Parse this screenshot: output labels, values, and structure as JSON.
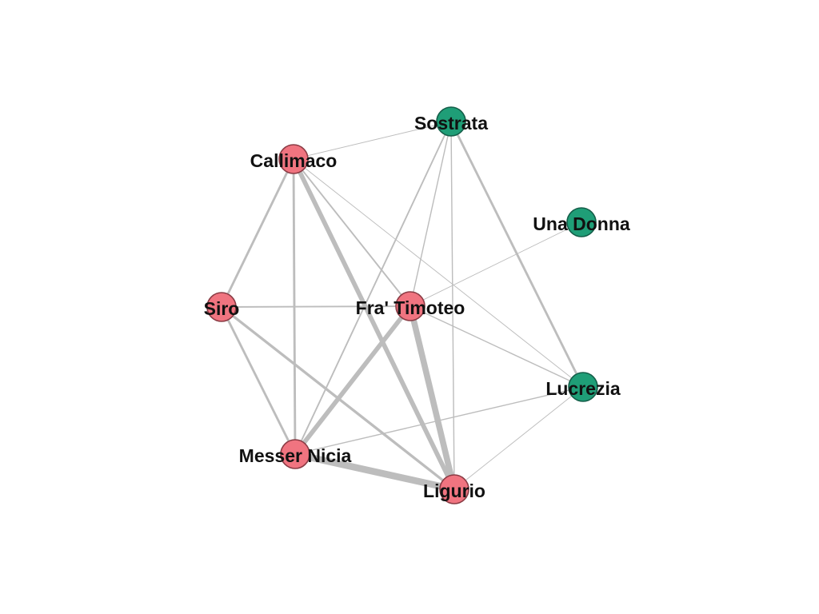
{
  "graph": {
    "colors": {
      "group_a": "#f07480",
      "group_a_stroke": "#8a3b44",
      "group_b": "#1f9e77",
      "group_b_stroke": "#145e49",
      "edge": "#bdbdbd"
    },
    "nodes": [
      {
        "id": "sostrata",
        "label": "Sostrata",
        "group": "b"
      },
      {
        "id": "callimaco",
        "label": "Callimaco",
        "group": "a"
      },
      {
        "id": "una-donna",
        "label": "Una Donna",
        "group": "b"
      },
      {
        "id": "siro",
        "label": "Siro",
        "group": "a"
      },
      {
        "id": "fra-timoteo",
        "label": "Fra' Timoteo",
        "group": "a"
      },
      {
        "id": "lucrezia",
        "label": "Lucrezia",
        "group": "b"
      },
      {
        "id": "messer-nicia",
        "label": "Messer Nicia",
        "group": "a"
      },
      {
        "id": "ligurio",
        "label": "Ligurio",
        "group": "a"
      }
    ],
    "edges": [
      {
        "source": "callimaco",
        "target": "sostrata",
        "weight": 1
      },
      {
        "source": "callimaco",
        "target": "siro",
        "weight": 3
      },
      {
        "source": "callimaco",
        "target": "messer-nicia",
        "weight": 3
      },
      {
        "source": "callimaco",
        "target": "fra-timoteo",
        "weight": 2
      },
      {
        "source": "callimaco",
        "target": "ligurio",
        "weight": 6
      },
      {
        "source": "callimaco",
        "target": "lucrezia",
        "weight": 1
      },
      {
        "source": "sostrata",
        "target": "messer-nicia",
        "weight": 2
      },
      {
        "source": "sostrata",
        "target": "fra-timoteo",
        "weight": 1.5
      },
      {
        "source": "sostrata",
        "target": "ligurio",
        "weight": 1.5
      },
      {
        "source": "sostrata",
        "target": "lucrezia",
        "weight": 3
      },
      {
        "source": "siro",
        "target": "fra-timoteo",
        "weight": 2
      },
      {
        "source": "siro",
        "target": "messer-nicia",
        "weight": 3
      },
      {
        "source": "siro",
        "target": "ligurio",
        "weight": 3.5
      },
      {
        "source": "fra-timoteo",
        "target": "una-donna",
        "weight": 1
      },
      {
        "source": "fra-timoteo",
        "target": "messer-nicia",
        "weight": 6
      },
      {
        "source": "fra-timoteo",
        "target": "ligurio",
        "weight": 8
      },
      {
        "source": "fra-timoteo",
        "target": "lucrezia",
        "weight": 1.5
      },
      {
        "source": "messer-nicia",
        "target": "ligurio",
        "weight": 9
      },
      {
        "source": "messer-nicia",
        "target": "lucrezia",
        "weight": 1.5
      },
      {
        "source": "ligurio",
        "target": "lucrezia",
        "weight": 1
      }
    ]
  }
}
